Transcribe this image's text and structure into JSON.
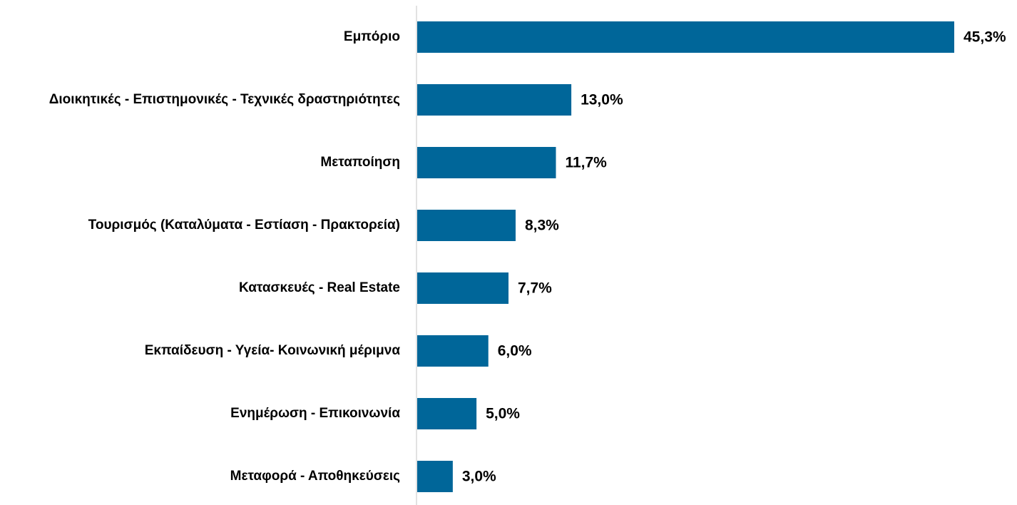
{
  "chart_data": {
    "type": "barh",
    "categories": [
      "Εμπόριο",
      "Διοικητικές - Επιστημονικές - Τεχνικές δραστηριότητες",
      "Μεταποίηση",
      "Τουρισμός (Καταλύματα - Εστίαση - Πρακτορεία)",
      "Κατασκευές - Real Estate",
      "Εκπαίδευση - Υγεία- Κοινωνική μέριμνα",
      "Ενημέρωση - Επικοινωνία",
      "Μεταφορά - Αποθηκεύσεις"
    ],
    "values": [
      45.3,
      13.0,
      11.7,
      8.3,
      7.7,
      6.0,
      5.0,
      3.0
    ],
    "value_labels": [
      "45,3%",
      "13,0%",
      "11,7%",
      "8,3%",
      "7,7%",
      "6,0%",
      "5,0%",
      "3,0%"
    ],
    "color": "#006699"
  }
}
